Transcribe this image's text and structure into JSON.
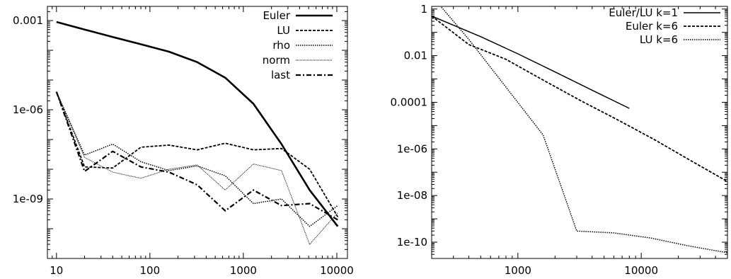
{
  "chart_data": [
    {
      "type": "line",
      "title": "",
      "xlabel": "",
      "ylabel": "",
      "xscale": "log",
      "yscale": "log",
      "xlim": [
        8,
        13000
      ],
      "ylim": [
        1e-11,
        0.003
      ],
      "x_ticks": [
        {
          "value": 10,
          "label": "10"
        },
        {
          "value": 100,
          "label": "100"
        },
        {
          "value": 1000,
          "label": "1000"
        },
        {
          "value": 10000,
          "label": "10000"
        }
      ],
      "y_ticks": [
        {
          "value": 0.001,
          "label": "0.001"
        },
        {
          "value": 1e-06,
          "label": "1e-06"
        },
        {
          "value": 1e-09,
          "label": "1e-09"
        }
      ],
      "grid": false,
      "legend_position": "top-right",
      "x": [
        10,
        20,
        40,
        80,
        160,
        320,
        640,
        1280,
        2560,
        5120,
        10240
      ],
      "series": [
        {
          "name": "Euler",
          "style": "solid-thick",
          "values": [
            0.0009,
            0.0005,
            0.00028,
            0.00016,
            9e-05,
            4e-05,
            1.2e-05,
            1.6e-06,
            7e-08,
            2e-09,
            1.2e-10
          ]
        },
        {
          "name": "LU",
          "style": "dashed",
          "values": [
            4e-06,
            1.2e-08,
            1.1e-08,
            5.5e-08,
            6.5e-08,
            4.5e-08,
            7.5e-08,
            4.5e-08,
            5e-08,
            1e-08,
            2.5e-10
          ]
        },
        {
          "name": "rho",
          "style": "dotted",
          "values": [
            4e-06,
            3e-08,
            7e-08,
            1.8e-08,
            9e-09,
            1.3e-08,
            6e-09,
            7e-10,
            1e-09,
            1.2e-10,
            6e-10
          ]
        },
        {
          "name": "norm",
          "style": "fine-dotted",
          "values": [
            4e-06,
            2.5e-08,
            8e-09,
            5e-09,
            1e-08,
            1.4e-08,
            2e-09,
            1.5e-08,
            9e-09,
            3e-11,
            3.5e-10
          ]
        },
        {
          "name": "last",
          "style": "dash-dot",
          "values": [
            4e-06,
            8.5e-09,
            4e-08,
            1.2e-08,
            8e-09,
            3e-09,
            4e-10,
            2e-09,
            6e-10,
            7e-10,
            2e-10
          ]
        }
      ]
    },
    {
      "type": "line",
      "title": "",
      "xlabel": "",
      "ylabel": "",
      "xscale": "log",
      "yscale": "log",
      "xlim": [
        200,
        50000
      ],
      "ylim": [
        2e-11,
        1.3
      ],
      "x_ticks": [
        {
          "value": 1000,
          "label": "1000"
        },
        {
          "value": 10000,
          "label": "10000"
        }
      ],
      "y_ticks": [
        {
          "value": 1,
          "label": "1"
        },
        {
          "value": 0.01,
          "label": "0.01"
        },
        {
          "value": 0.0001,
          "label": "0.0001"
        },
        {
          "value": 1e-06,
          "label": "1e-06"
        },
        {
          "value": 1e-08,
          "label": "1e-08"
        },
        {
          "value": 1e-10,
          "label": "1e-10"
        }
      ],
      "grid": false,
      "legend_position": "top-right",
      "series": [
        {
          "name": "Euler/LU k=1",
          "style": "solid",
          "x": [
            200,
            500,
            1000,
            2000,
            4000,
            8000
          ],
          "values": [
            0.5,
            0.065,
            0.012,
            0.002,
            0.00033,
            5.5e-05
          ]
        },
        {
          "name": "Euler k=6",
          "style": "dashed",
          "x": [
            200,
            400,
            800,
            1600,
            3200,
            6400,
            12800,
            25600,
            50000
          ],
          "values": [
            0.5,
            0.03,
            0.007,
            0.0009,
            0.00012,
            1.8e-05,
            2.5e-06,
            3e-07,
            4e-08
          ]
        },
        {
          "name": "LU k=6",
          "style": "dotted",
          "x": [
            240,
            400,
            800,
            1600,
            3000,
            6000,
            12000,
            24000,
            50000
          ],
          "values": [
            1.2,
            0.05,
            0.00045,
            4e-06,
            3e-10,
            2.5e-10,
            1.5e-10,
            7e-11,
            3.5e-11
          ]
        }
      ]
    }
  ]
}
